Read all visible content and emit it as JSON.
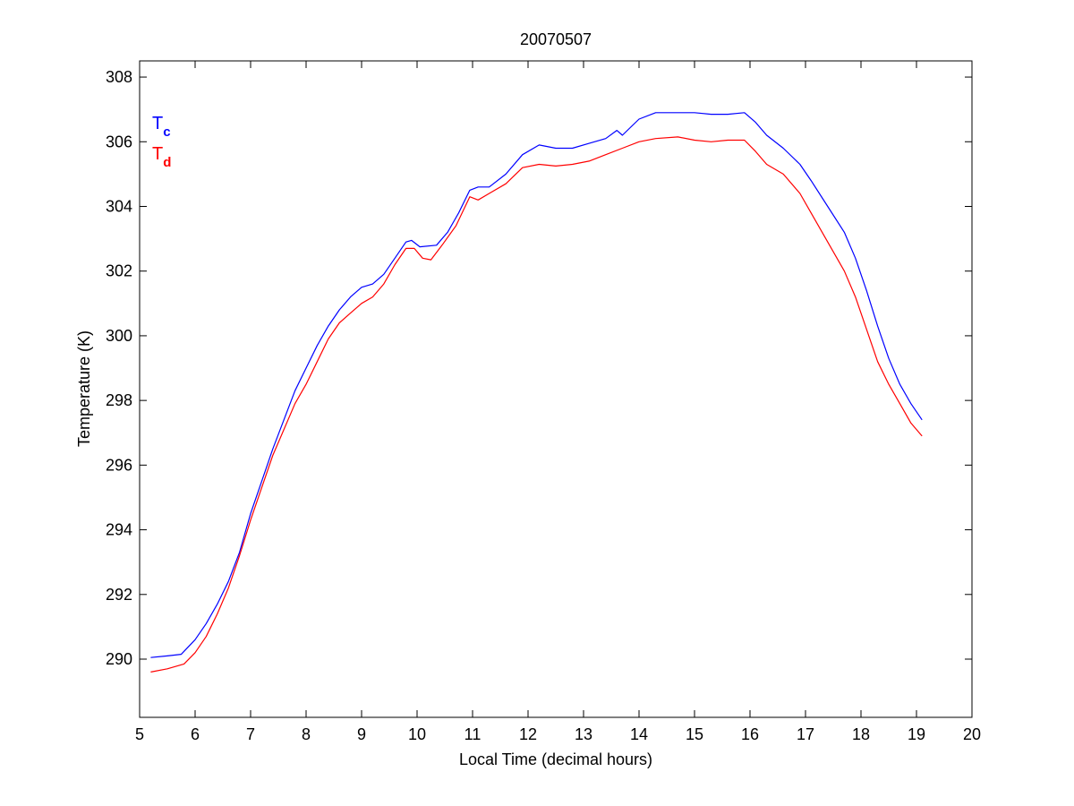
{
  "chart_data": {
    "type": "line",
    "title": "20070507",
    "xlabel": "Local Time (decimal hours)",
    "ylabel": "Temperature (K)",
    "xlim": [
      5,
      20
    ],
    "ylim": [
      288.2,
      308.5
    ],
    "xticks": [
      5,
      6,
      7,
      8,
      9,
      10,
      11,
      12,
      13,
      14,
      15,
      16,
      17,
      18,
      19,
      20
    ],
    "yticks": [
      290,
      292,
      294,
      296,
      298,
      300,
      302,
      304,
      306,
      308
    ],
    "grid": false,
    "legend": {
      "placement": "top-left",
      "entries": [
        {
          "main": "T",
          "sub": "c",
          "color": "#0000ff"
        },
        {
          "main": "T",
          "sub": "d",
          "color": "#ff0000"
        }
      ]
    },
    "series": [
      {
        "color": "#0000ff",
        "points": [
          [
            5.2,
            290.05
          ],
          [
            5.5,
            290.1
          ],
          [
            5.75,
            290.15
          ],
          [
            6.0,
            290.6
          ],
          [
            6.2,
            291.1
          ],
          [
            6.4,
            291.7
          ],
          [
            6.6,
            292.4
          ],
          [
            6.8,
            293.3
          ],
          [
            7.0,
            294.5
          ],
          [
            7.2,
            295.5
          ],
          [
            7.4,
            296.5
          ],
          [
            7.6,
            297.4
          ],
          [
            7.8,
            298.3
          ],
          [
            8.0,
            299.0
          ],
          [
            8.2,
            299.7
          ],
          [
            8.4,
            300.3
          ],
          [
            8.6,
            300.8
          ],
          [
            8.8,
            301.2
          ],
          [
            9.0,
            301.5
          ],
          [
            9.2,
            301.6
          ],
          [
            9.4,
            301.9
          ],
          [
            9.6,
            302.4
          ],
          [
            9.8,
            302.9
          ],
          [
            9.9,
            302.95
          ],
          [
            10.05,
            302.75
          ],
          [
            10.35,
            302.8
          ],
          [
            10.55,
            303.2
          ],
          [
            10.75,
            303.8
          ],
          [
            10.95,
            304.5
          ],
          [
            11.1,
            304.6
          ],
          [
            11.3,
            304.6
          ],
          [
            11.6,
            305.0
          ],
          [
            11.9,
            305.6
          ],
          [
            12.2,
            305.9
          ],
          [
            12.5,
            305.8
          ],
          [
            12.8,
            305.8
          ],
          [
            13.1,
            305.95
          ],
          [
            13.4,
            306.1
          ],
          [
            13.6,
            306.35
          ],
          [
            13.7,
            306.2
          ],
          [
            14.0,
            306.7
          ],
          [
            14.3,
            306.9
          ],
          [
            14.6,
            306.9
          ],
          [
            15.0,
            306.9
          ],
          [
            15.3,
            306.85
          ],
          [
            15.6,
            306.85
          ],
          [
            15.9,
            306.9
          ],
          [
            16.1,
            306.6
          ],
          [
            16.3,
            306.2
          ],
          [
            16.6,
            305.8
          ],
          [
            16.9,
            305.3
          ],
          [
            17.1,
            304.8
          ],
          [
            17.4,
            304.0
          ],
          [
            17.7,
            303.2
          ],
          [
            17.9,
            302.4
          ],
          [
            18.1,
            301.4
          ],
          [
            18.3,
            300.3
          ],
          [
            18.5,
            299.3
          ],
          [
            18.7,
            298.5
          ],
          [
            18.9,
            297.9
          ],
          [
            19.1,
            297.4
          ]
        ]
      },
      {
        "color": "#ff0000",
        "points": [
          [
            5.2,
            289.6
          ],
          [
            5.5,
            289.7
          ],
          [
            5.8,
            289.85
          ],
          [
            6.0,
            290.2
          ],
          [
            6.2,
            290.7
          ],
          [
            6.4,
            291.4
          ],
          [
            6.6,
            292.2
          ],
          [
            6.8,
            293.2
          ],
          [
            7.0,
            294.3
          ],
          [
            7.2,
            295.3
          ],
          [
            7.4,
            296.3
          ],
          [
            7.6,
            297.1
          ],
          [
            7.8,
            297.9
          ],
          [
            8.0,
            298.5
          ],
          [
            8.2,
            299.2
          ],
          [
            8.4,
            299.9
          ],
          [
            8.6,
            300.4
          ],
          [
            8.8,
            300.7
          ],
          [
            9.0,
            301.0
          ],
          [
            9.2,
            301.2
          ],
          [
            9.4,
            301.6
          ],
          [
            9.6,
            302.2
          ],
          [
            9.8,
            302.7
          ],
          [
            9.95,
            302.7
          ],
          [
            10.1,
            302.4
          ],
          [
            10.25,
            302.35
          ],
          [
            10.45,
            302.8
          ],
          [
            10.7,
            303.4
          ],
          [
            10.95,
            304.3
          ],
          [
            11.1,
            304.2
          ],
          [
            11.3,
            304.4
          ],
          [
            11.6,
            304.7
          ],
          [
            11.9,
            305.2
          ],
          [
            12.2,
            305.3
          ],
          [
            12.5,
            305.25
          ],
          [
            12.8,
            305.3
          ],
          [
            13.1,
            305.4
          ],
          [
            13.4,
            305.6
          ],
          [
            13.7,
            305.8
          ],
          [
            14.0,
            306.0
          ],
          [
            14.3,
            306.1
          ],
          [
            14.7,
            306.15
          ],
          [
            15.0,
            306.05
          ],
          [
            15.3,
            306.0
          ],
          [
            15.6,
            306.05
          ],
          [
            15.9,
            306.05
          ],
          [
            16.1,
            305.7
          ],
          [
            16.3,
            305.3
          ],
          [
            16.6,
            305.0
          ],
          [
            16.9,
            304.4
          ],
          [
            17.1,
            303.8
          ],
          [
            17.4,
            302.9
          ],
          [
            17.7,
            302.0
          ],
          [
            17.9,
            301.2
          ],
          [
            18.1,
            300.2
          ],
          [
            18.3,
            299.2
          ],
          [
            18.5,
            298.5
          ],
          [
            18.7,
            297.9
          ],
          [
            18.9,
            297.3
          ],
          [
            19.1,
            296.9
          ]
        ]
      }
    ]
  }
}
